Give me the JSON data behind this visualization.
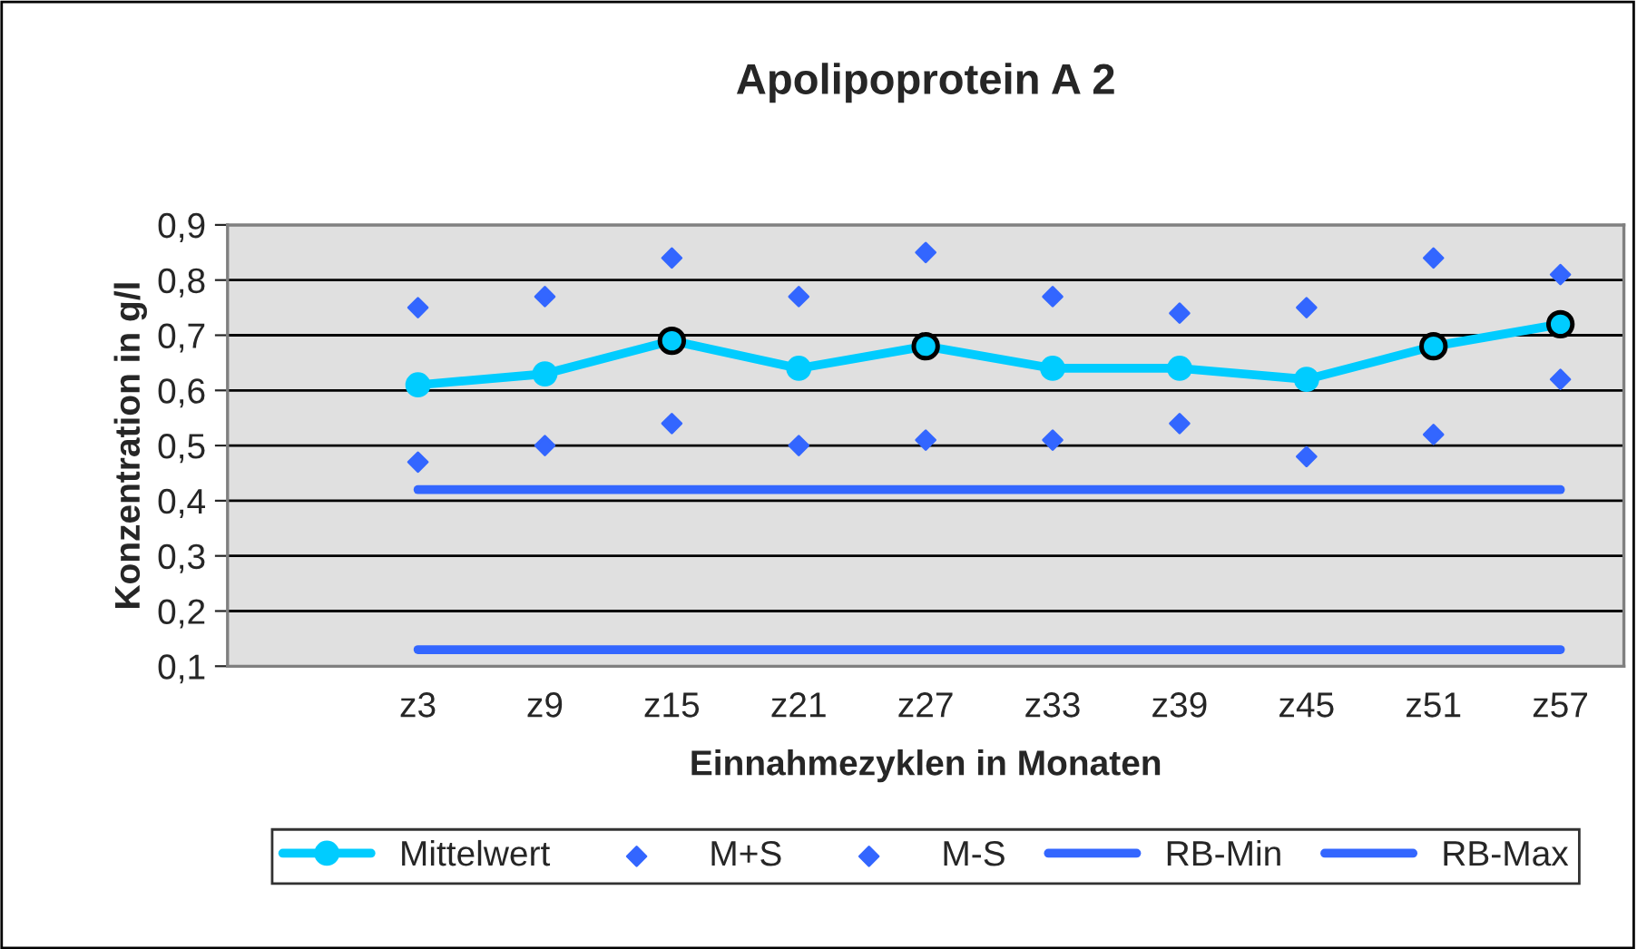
{
  "chart_data": {
    "type": "line",
    "title": "Apolipoprotein A 2",
    "xlabel": "Einnahmezyklen in Monaten",
    "ylabel": "Konzentration in g/l",
    "categories": [
      null,
      "z3",
      "z9",
      "z15",
      "z21",
      "z27",
      "z33",
      "z39",
      "z45",
      "z51",
      "z57"
    ],
    "series": [
      {
        "name": "Mittelwert",
        "marker": "circle",
        "color": "#00ccff",
        "values": [
          null,
          0.61,
          0.63,
          0.69,
          0.64,
          0.68,
          0.64,
          0.64,
          0.62,
          0.68,
          0.72
        ]
      },
      {
        "name": "M+S",
        "type": "scatter",
        "marker": "diamond",
        "color": "#3366ff",
        "values": [
          null,
          0.75,
          0.77,
          0.84,
          0.77,
          0.85,
          0.77,
          0.74,
          0.75,
          0.84,
          0.81
        ]
      },
      {
        "name": "M-S",
        "type": "scatter",
        "marker": "diamond",
        "color": "#3366ff",
        "values": [
          null,
          0.47,
          0.5,
          0.54,
          0.5,
          0.51,
          0.51,
          0.54,
          0.48,
          0.52,
          0.62
        ]
      },
      {
        "name": "RB-Min",
        "marker": "none",
        "color": "#3366ff",
        "values": [
          null,
          0.42,
          0.42,
          0.42,
          0.42,
          0.42,
          0.42,
          0.42,
          0.42,
          0.42,
          0.42
        ]
      },
      {
        "name": "RB-Max",
        "marker": "none",
        "color": "#3366ff",
        "values": [
          null,
          0.13,
          0.13,
          0.13,
          0.13,
          0.13,
          0.13,
          0.13,
          0.13,
          0.13,
          0.13
        ]
      },
      {
        "type": "scatter",
        "marker": "circle",
        "color": "#000000",
        "values": [
          null,
          null,
          null,
          0.69,
          null,
          0.68,
          null,
          null,
          null,
          0.68,
          0.72
        ]
      }
    ],
    "ylim": [
      0.1,
      0.9
    ],
    "yticks": [
      {
        "value": 0.1,
        "label": "0,1"
      },
      {
        "value": 0.2,
        "label": "0,2"
      },
      {
        "value": 0.3,
        "label": "0,3"
      },
      {
        "value": 0.4,
        "label": "0,4"
      },
      {
        "value": 0.5,
        "label": "0,5"
      },
      {
        "value": 0.6,
        "label": "0,6"
      },
      {
        "value": 0.7,
        "label": "0,7"
      },
      {
        "value": 0.8,
        "label": "0,8"
      },
      {
        "value": 0.9,
        "label": "0,9"
      }
    ],
    "grid": "y",
    "legend": "bottom"
  }
}
